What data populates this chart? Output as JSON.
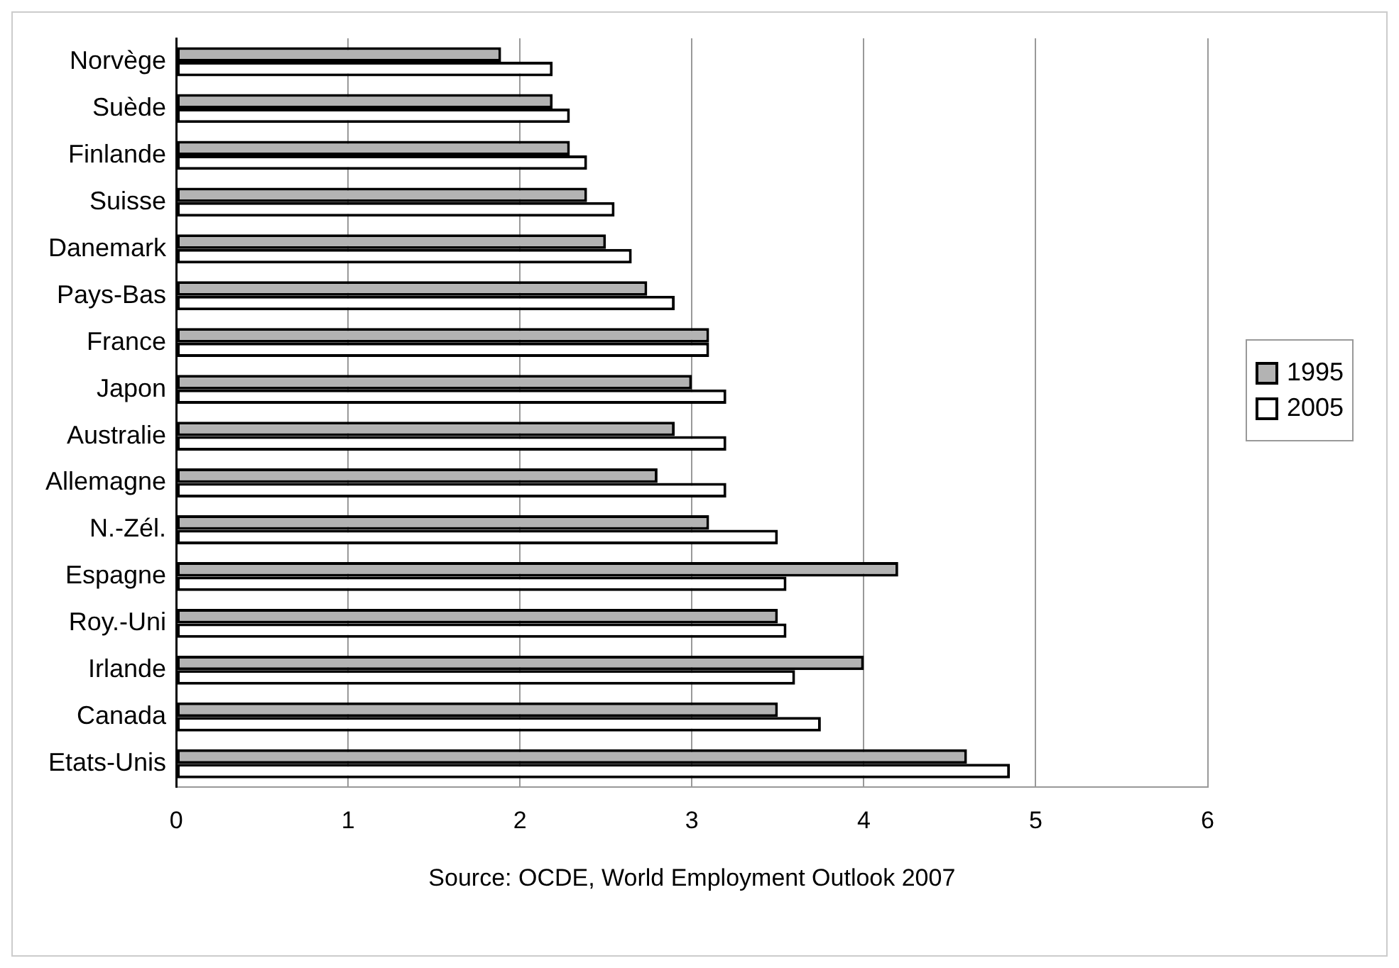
{
  "chart_data": {
    "type": "bar",
    "orientation": "horizontal",
    "categories": [
      "Norvège",
      "Suède",
      "Finlande",
      "Suisse",
      "Danemark",
      "Pays-Bas",
      "France",
      "Japon",
      "Australie",
      "Allemagne",
      "N.-Zél.",
      "Espagne",
      "Roy.-Uni",
      "Irlande",
      "Canada",
      "Etats-Unis"
    ],
    "series": [
      {
        "name": "1995",
        "color": "#b3b3b3",
        "values": [
          1.89,
          2.19,
          2.29,
          2.39,
          2.5,
          2.74,
          3.1,
          3.0,
          2.9,
          2.8,
          3.1,
          4.2,
          3.5,
          4.0,
          3.5,
          4.6
        ]
      },
      {
        "name": "2005",
        "color": "#ffffff",
        "values": [
          2.19,
          2.29,
          2.39,
          2.55,
          2.65,
          2.9,
          3.1,
          3.2,
          3.2,
          3.2,
          3.5,
          3.55,
          3.55,
          3.6,
          3.75,
          4.85
        ]
      }
    ],
    "xlim": [
      0,
      6
    ],
    "xticks": [
      0,
      1,
      2,
      3,
      4,
      5,
      6
    ],
    "grid": "x",
    "legend": "right",
    "annotations": [
      "Source: OCDE, World Employment Outlook 2007"
    ]
  }
}
